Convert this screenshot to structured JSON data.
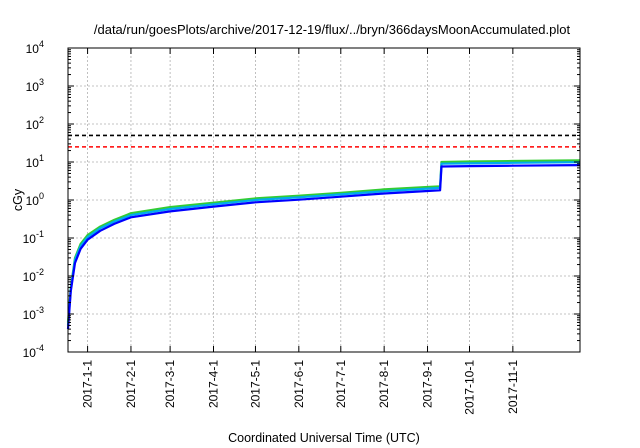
{
  "chart_data": {
    "type": "line",
    "title": "/data/run/goesPlots/archive/2017-12-19/flux/../bryn/366daysMoonAccumulated.plot",
    "xlabel": "Coordinated Universal Time (UTC)",
    "ylabel": "cGy",
    "yscale": "log",
    "ylim": [
      0.0001,
      10000
    ],
    "xlim": [
      "2016-12-18",
      "2017-12-19"
    ],
    "x_ticks": [
      "2017-1-1",
      "2017-2-1",
      "2017-3-1",
      "2017-4-1",
      "2017-5-1",
      "2017-6-1",
      "2017-7-1",
      "2017-8-1",
      "2017-9-1",
      "2017-10-1",
      "2017-11-1"
    ],
    "y_ticks": [
      {
        "base": "10",
        "exp": "-4",
        "value": 0.0001
      },
      {
        "base": "10",
        "exp": "-3",
        "value": 0.001
      },
      {
        "base": "10",
        "exp": "-2",
        "value": 0.01
      },
      {
        "base": "10",
        "exp": "-1",
        "value": 0.1
      },
      {
        "base": "10",
        "exp": "0",
        "value": 1
      },
      {
        "base": "10",
        "exp": "1",
        "value": 10
      },
      {
        "base": "10",
        "exp": "2",
        "value": 100
      },
      {
        "base": "10",
        "exp": "3",
        "value": 1000
      },
      {
        "base": "10",
        "exp": "4",
        "value": 10000
      }
    ],
    "grid": true,
    "reference_lines": [
      {
        "value": 50,
        "color": "#000000",
        "style": "dashed"
      },
      {
        "value": 25,
        "color": "#ff0000",
        "style": "dashed"
      }
    ],
    "series": [
      {
        "color": "#33cc33",
        "x": [
          "2016-12-18",
          "2016-12-20",
          "2016-12-23",
          "2016-12-27",
          "2017-1-1",
          "2017-1-10",
          "2017-1-20",
          "2017-2-1",
          "2017-3-1",
          "2017-4-1",
          "2017-5-1",
          "2017-6-1",
          "2017-7-1",
          "2017-8-1",
          "2017-9-1",
          "2017-9-10",
          "2017-9-11",
          "2017-10-1",
          "2017-11-1",
          "2017-12-19"
        ],
        "values": [
          0.0006,
          0.005,
          0.03,
          0.07,
          0.12,
          0.2,
          0.3,
          0.45,
          0.65,
          0.85,
          1.1,
          1.3,
          1.55,
          1.9,
          2.2,
          2.3,
          10.0,
          10.3,
          10.6,
          11.0
        ]
      },
      {
        "color": "#00aaee",
        "x": [
          "2016-12-18",
          "2016-12-20",
          "2016-12-23",
          "2016-12-27",
          "2017-1-1",
          "2017-1-10",
          "2017-1-20",
          "2017-2-1",
          "2017-3-1",
          "2017-4-1",
          "2017-5-1",
          "2017-6-1",
          "2017-7-1",
          "2017-8-1",
          "2017-9-1",
          "2017-9-10",
          "2017-9-11",
          "2017-10-1",
          "2017-11-1",
          "2017-12-19"
        ],
        "values": [
          0.0005,
          0.0045,
          0.027,
          0.062,
          0.105,
          0.18,
          0.27,
          0.4,
          0.58,
          0.77,
          1.0,
          1.18,
          1.4,
          1.7,
          2.0,
          2.1,
          9.0,
          9.2,
          9.5,
          9.9
        ]
      },
      {
        "color": "#0000ff",
        "x": [
          "2016-12-18",
          "2016-12-20",
          "2016-12-23",
          "2016-12-27",
          "2017-1-1",
          "2017-1-10",
          "2017-1-20",
          "2017-2-1",
          "2017-3-1",
          "2017-4-1",
          "2017-5-1",
          "2017-6-1",
          "2017-7-1",
          "2017-8-1",
          "2017-9-1",
          "2017-9-10",
          "2017-9-11",
          "2017-10-1",
          "2017-11-1",
          "2017-12-19"
        ],
        "values": [
          0.0004,
          0.004,
          0.022,
          0.052,
          0.09,
          0.155,
          0.235,
          0.35,
          0.5,
          0.67,
          0.87,
          1.02,
          1.22,
          1.48,
          1.72,
          1.8,
          7.6,
          7.8,
          8.0,
          8.3
        ]
      }
    ]
  }
}
